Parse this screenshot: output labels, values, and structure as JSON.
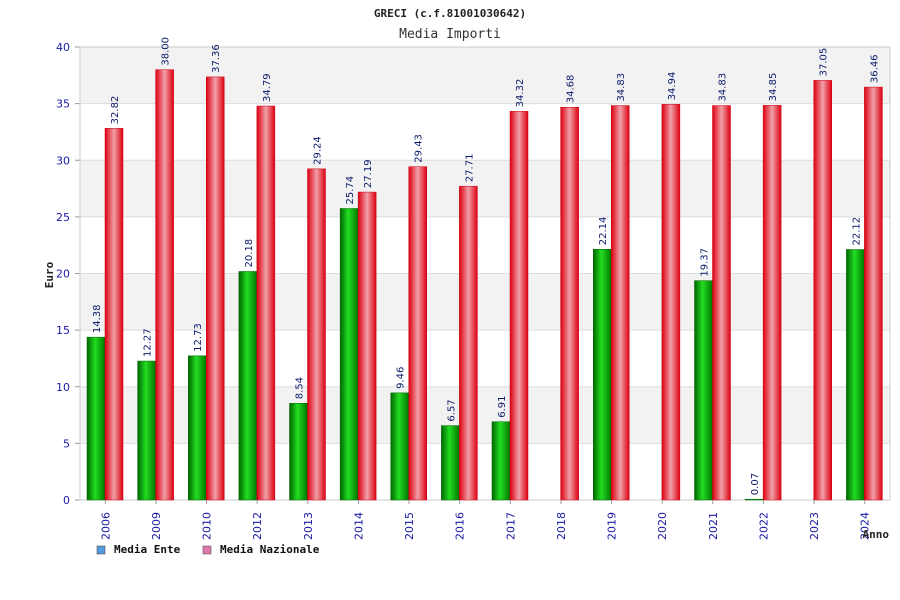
{
  "chart_data": {
    "type": "bar",
    "title": "GRECI (c.f.81001030642)",
    "subtitle": "Media Importi",
    "xlabel": "Anno",
    "ylabel": "Euro",
    "ylim": [
      0,
      40
    ],
    "yticks": [
      0,
      5,
      10,
      15,
      20,
      25,
      30,
      35,
      40
    ],
    "categories": [
      "2006",
      "2009",
      "2010",
      "2012",
      "2013",
      "2014",
      "2015",
      "2016",
      "2017",
      "2018",
      "2019",
      "2020",
      "2021",
      "2022",
      "2023",
      "2024"
    ],
    "series": [
      {
        "name": "Media Ente",
        "color": "#00aa00",
        "legend_color": "#5599dd",
        "values": [
          14.38,
          12.27,
          12.73,
          20.18,
          8.54,
          25.74,
          9.46,
          6.57,
          6.91,
          null,
          22.14,
          null,
          19.37,
          0.07,
          null,
          22.12
        ],
        "labels": [
          "14.38",
          "12.27",
          "12.73",
          "20.18",
          "8.54",
          "25.74",
          "9.46",
          "6.57",
          "6.91",
          null,
          "22.14",
          null,
          "19.37",
          "0.07",
          null,
          "22.12"
        ]
      },
      {
        "name": "Media Nazionale",
        "color": "#ee1122",
        "legend_color": "#dd77aa",
        "values": [
          32.82,
          38.0,
          37.36,
          34.79,
          29.24,
          27.19,
          29.43,
          27.71,
          34.32,
          34.68,
          34.83,
          34.94,
          34.83,
          34.85,
          37.05,
          36.46
        ],
        "labels": [
          "32.82",
          "38.00",
          "37.36",
          "34.79",
          "29.24",
          "27.19",
          "29.43",
          "27.71",
          "34.32",
          "34.68",
          "34.83",
          "34.94",
          "34.83",
          "34.85",
          "37.05",
          "36.46"
        ]
      }
    ],
    "grid": true,
    "legend_position": "bottom-left"
  }
}
